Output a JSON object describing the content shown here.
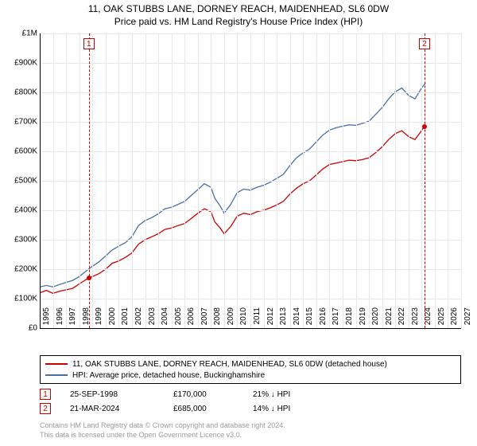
{
  "title_line1": "11, OAK STUBBS LANE, DORNEY REACH, MAIDENHEAD, SL6 0DW",
  "title_line2": "Price paid vs. HM Land Registry's House Price Index (HPI)",
  "chart": {
    "type": "line",
    "background_color": "#ffffff",
    "grid_color": "#e8e8e8",
    "axis_color": "#000000",
    "x_years": [
      1995,
      1996,
      1997,
      1998,
      1999,
      2000,
      2001,
      2002,
      2003,
      2004,
      2005,
      2006,
      2007,
      2008,
      2009,
      2010,
      2011,
      2012,
      2013,
      2014,
      2015,
      2016,
      2017,
      2018,
      2019,
      2020,
      2021,
      2022,
      2023,
      2024,
      2025,
      2026,
      2027
    ],
    "x_min": 1995,
    "x_max": 2027,
    "y_min": 0,
    "y_max": 1000000,
    "y_ticks": [
      0,
      100000,
      200000,
      300000,
      400000,
      500000,
      600000,
      700000,
      800000,
      900000,
      1000000
    ],
    "y_tick_labels": [
      "£0",
      "£100K",
      "£200K",
      "£300K",
      "£400K",
      "£500K",
      "£600K",
      "£700K",
      "£800K",
      "£900K",
      "£1M"
    ],
    "series": {
      "price_paid": {
        "color": "#cc0000",
        "width": 1.3,
        "points": [
          [
            1995.0,
            120000
          ],
          [
            1995.5,
            128000
          ],
          [
            1996.0,
            118000
          ],
          [
            1996.5,
            125000
          ],
          [
            1997.0,
            130000
          ],
          [
            1997.5,
            135000
          ],
          [
            1998.0,
            150000
          ],
          [
            1998.7,
            170000
          ],
          [
            1999.0,
            175000
          ],
          [
            1999.5,
            185000
          ],
          [
            2000.0,
            200000
          ],
          [
            2000.5,
            220000
          ],
          [
            2001.0,
            228000
          ],
          [
            2001.5,
            240000
          ],
          [
            2002.0,
            255000
          ],
          [
            2002.5,
            285000
          ],
          [
            2003.0,
            300000
          ],
          [
            2003.5,
            310000
          ],
          [
            2004.0,
            320000
          ],
          [
            2004.5,
            335000
          ],
          [
            2005.0,
            340000
          ],
          [
            2005.5,
            348000
          ],
          [
            2006.0,
            355000
          ],
          [
            2006.5,
            372000
          ],
          [
            2007.0,
            390000
          ],
          [
            2007.5,
            405000
          ],
          [
            2008.0,
            395000
          ],
          [
            2008.3,
            360000
          ],
          [
            2008.7,
            340000
          ],
          [
            2009.0,
            320000
          ],
          [
            2009.5,
            345000
          ],
          [
            2010.0,
            380000
          ],
          [
            2010.5,
            390000
          ],
          [
            2011.0,
            385000
          ],
          [
            2011.5,
            395000
          ],
          [
            2012.0,
            400000
          ],
          [
            2012.5,
            408000
          ],
          [
            2013.0,
            418000
          ],
          [
            2013.5,
            430000
          ],
          [
            2014.0,
            455000
          ],
          [
            2014.5,
            475000
          ],
          [
            2015.0,
            490000
          ],
          [
            2015.5,
            500000
          ],
          [
            2016.0,
            520000
          ],
          [
            2016.5,
            540000
          ],
          [
            2017.0,
            555000
          ],
          [
            2017.5,
            560000
          ],
          [
            2018.0,
            565000
          ],
          [
            2018.5,
            570000
          ],
          [
            2019.0,
            568000
          ],
          [
            2019.5,
            572000
          ],
          [
            2020.0,
            578000
          ],
          [
            2020.5,
            595000
          ],
          [
            2021.0,
            615000
          ],
          [
            2021.5,
            640000
          ],
          [
            2022.0,
            660000
          ],
          [
            2022.5,
            670000
          ],
          [
            2023.0,
            650000
          ],
          [
            2023.5,
            640000
          ],
          [
            2024.0,
            670000
          ],
          [
            2024.2,
            685000
          ]
        ]
      },
      "hpi": {
        "color": "#4a6fa5",
        "width": 1.3,
        "points": [
          [
            1995.0,
            140000
          ],
          [
            1995.5,
            145000
          ],
          [
            1996.0,
            140000
          ],
          [
            1996.5,
            148000
          ],
          [
            1997.0,
            155000
          ],
          [
            1997.5,
            162000
          ],
          [
            1998.0,
            175000
          ],
          [
            1998.7,
            200000
          ],
          [
            1999.0,
            210000
          ],
          [
            1999.5,
            225000
          ],
          [
            2000.0,
            245000
          ],
          [
            2000.5,
            265000
          ],
          [
            2001.0,
            278000
          ],
          [
            2001.5,
            290000
          ],
          [
            2002.0,
            310000
          ],
          [
            2002.5,
            348000
          ],
          [
            2003.0,
            365000
          ],
          [
            2003.5,
            375000
          ],
          [
            2004.0,
            388000
          ],
          [
            2004.5,
            405000
          ],
          [
            2005.0,
            410000
          ],
          [
            2005.5,
            420000
          ],
          [
            2006.0,
            430000
          ],
          [
            2006.5,
            450000
          ],
          [
            2007.0,
            470000
          ],
          [
            2007.5,
            490000
          ],
          [
            2008.0,
            478000
          ],
          [
            2008.3,
            440000
          ],
          [
            2008.7,
            415000
          ],
          [
            2009.0,
            390000
          ],
          [
            2009.5,
            420000
          ],
          [
            2010.0,
            460000
          ],
          [
            2010.5,
            472000
          ],
          [
            2011.0,
            468000
          ],
          [
            2011.5,
            478000
          ],
          [
            2012.0,
            485000
          ],
          [
            2012.5,
            495000
          ],
          [
            2013.0,
            508000
          ],
          [
            2013.5,
            522000
          ],
          [
            2014.0,
            552000
          ],
          [
            2014.5,
            578000
          ],
          [
            2015.0,
            595000
          ],
          [
            2015.5,
            608000
          ],
          [
            2016.0,
            632000
          ],
          [
            2016.5,
            655000
          ],
          [
            2017.0,
            672000
          ],
          [
            2017.5,
            680000
          ],
          [
            2018.0,
            685000
          ],
          [
            2018.5,
            690000
          ],
          [
            2019.0,
            688000
          ],
          [
            2019.5,
            695000
          ],
          [
            2020.0,
            702000
          ],
          [
            2020.5,
            725000
          ],
          [
            2021.0,
            748000
          ],
          [
            2021.5,
            778000
          ],
          [
            2022.0,
            802000
          ],
          [
            2022.5,
            815000
          ],
          [
            2023.0,
            790000
          ],
          [
            2023.5,
            778000
          ],
          [
            2024.0,
            815000
          ],
          [
            2024.3,
            832000
          ]
        ]
      }
    },
    "sale_markers": [
      {
        "n": "1",
        "year": 1998.73,
        "price": 170000,
        "color": "#cc0000"
      },
      {
        "n": "2",
        "year": 2024.22,
        "price": 685000,
        "color": "#cc0000"
      }
    ]
  },
  "legend": [
    {
      "color": "#cc0000",
      "label": "11, OAK STUBBS LANE, DORNEY REACH, MAIDENHEAD, SL6 0DW (detached house)"
    },
    {
      "color": "#4a6fa5",
      "label": "HPI: Average price, detached house, Buckinghamshire"
    }
  ],
  "sales": [
    {
      "n": "1",
      "color": "#cc0000",
      "date": "25-SEP-1998",
      "price": "£170,000",
      "hpi": "21% ↓ HPI"
    },
    {
      "n": "2",
      "color": "#cc0000",
      "date": "21-MAR-2024",
      "price": "£685,000",
      "hpi": "14% ↓ HPI"
    }
  ],
  "footer_line1": "Contains HM Land Registry data © Crown copyright and database right 2024.",
  "footer_line2": "This data is licensed under the Open Government Licence v3.0."
}
